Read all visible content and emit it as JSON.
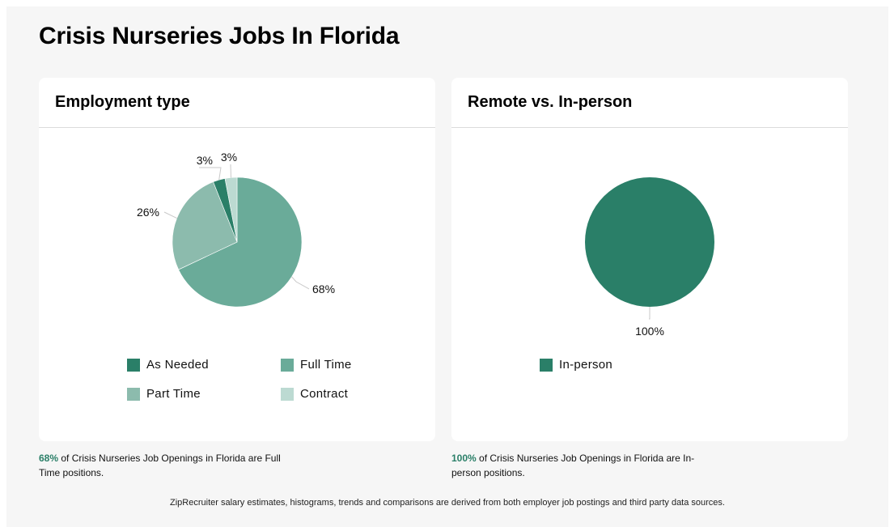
{
  "page": {
    "title": "Crisis Nurseries Jobs In Florida",
    "footer": "ZipRecruiter salary estimates, histograms, trends and comparisons are derived from both employer job postings and third party data sources."
  },
  "cards": [
    {
      "title": "Employment type",
      "caption_pct": "68%",
      "caption_text": " of Crisis Nurseries Job Openings in Florida are Full Time positions."
    },
    {
      "title": "Remote vs. In-person",
      "caption_pct": "100%",
      "caption_text": " of Crisis Nurseries Job Openings in Florida are In-person positions."
    }
  ],
  "chart_data": [
    {
      "type": "pie",
      "title": "Employment type",
      "categories": [
        "Full Time",
        "Part Time",
        "As Needed",
        "Contract"
      ],
      "values": [
        68,
        26,
        3,
        3
      ],
      "labels": [
        "68%",
        "26%",
        "3%",
        "3%"
      ],
      "colors": [
        "#6aab99",
        "#8cbbad",
        "#2a7f68",
        "#bcdad2"
      ],
      "legend": [
        "As Needed",
        "Full Time",
        "Part Time",
        "Contract"
      ],
      "legend_colors": [
        "#2a7f68",
        "#6aab99",
        "#8cbbad",
        "#bcdad2"
      ],
      "legend_placement": "bottom"
    },
    {
      "type": "pie",
      "title": "Remote vs. In-person",
      "categories": [
        "In-person"
      ],
      "values": [
        100
      ],
      "labels": [
        "100%"
      ],
      "colors": [
        "#2a7f68"
      ],
      "legend": [
        "In-person"
      ],
      "legend_colors": [
        "#2a7f68"
      ],
      "legend_placement": "bottom"
    }
  ]
}
